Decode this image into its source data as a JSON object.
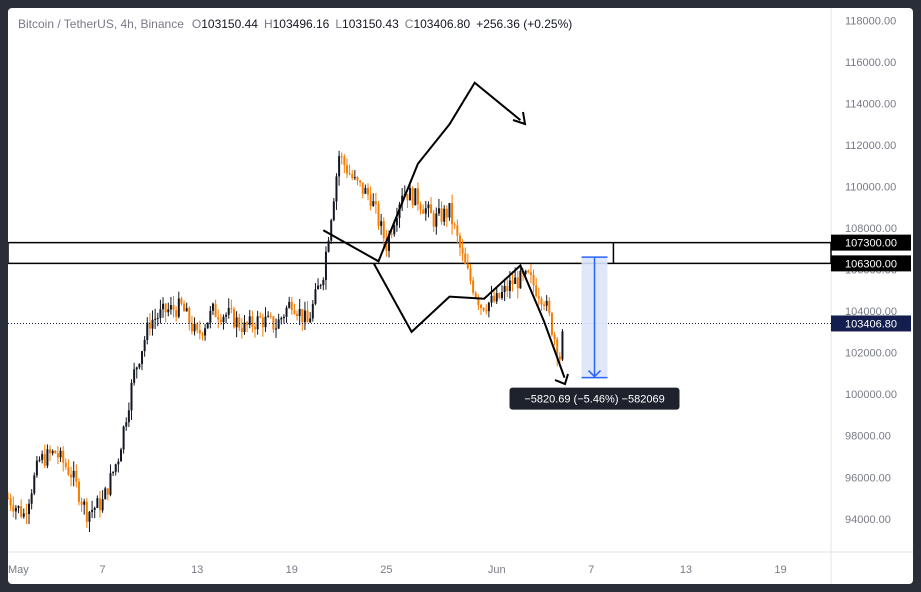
{
  "legend": {
    "symbol": "Bitcoin / TetherUS, 4h, Binance",
    "o_label": "O",
    "o": "103150.44",
    "h_label": "H",
    "h": "103496.16",
    "l_label": "L",
    "l": "103150.43",
    "c_label": "C",
    "c": "103406.80",
    "change": "+256.36 (+0.25%)"
  },
  "colors": {
    "up": "#131722",
    "down": "#f57c00",
    "zone": "#000000",
    "measure": "#2962ff",
    "measure_fill": "#dbe6fb",
    "price_tag": "#131e4f"
  },
  "chart_data": {
    "type": "candlestick",
    "ylim": [
      92400,
      118600
    ],
    "y_ticks": [
      "118000.00",
      "116000.00",
      "114000.00",
      "112000.00",
      "110000.00",
      "108000.00",
      "106000.00",
      "104000.00",
      "102000.00",
      "100000.00",
      "98000.00",
      "96000.00",
      "94000.00"
    ],
    "y_tick_values": [
      118000,
      116000,
      114000,
      112000,
      110000,
      108000,
      106000,
      104000,
      102000,
      100000,
      98000,
      96000,
      94000
    ],
    "x_ticks": [
      "May",
      "7",
      "13",
      "19",
      "25",
      "Jun",
      "7",
      "13",
      "19"
    ],
    "x_tick_days": [
      1,
      7,
      13,
      19,
      25,
      32,
      38,
      44,
      50
    ],
    "xlim_days": [
      1,
      53.2
    ],
    "close_series": [
      {
        "day": 1,
        "price": 95000
      },
      {
        "day": 2,
        "price": 94200
      },
      {
        "day": 3,
        "price": 96800
      },
      {
        "day": 4,
        "price": 97200
      },
      {
        "day": 5,
        "price": 96200
      },
      {
        "day": 6,
        "price": 94300
      },
      {
        "day": 7,
        "price": 94800
      },
      {
        "day": 8,
        "price": 97000
      },
      {
        "day": 9,
        "price": 101000
      },
      {
        "day": 10,
        "price": 103500
      },
      {
        "day": 11,
        "price": 104000
      },
      {
        "day": 12,
        "price": 104200
      },
      {
        "day": 13,
        "price": 102800
      },
      {
        "day": 14,
        "price": 104000
      },
      {
        "day": 15,
        "price": 103800
      },
      {
        "day": 16,
        "price": 103200
      },
      {
        "day": 17,
        "price": 103600
      },
      {
        "day": 18,
        "price": 103300
      },
      {
        "day": 19,
        "price": 104500
      },
      {
        "day": 20,
        "price": 103400
      },
      {
        "day": 21,
        "price": 105900
      },
      {
        "day": 22,
        "price": 111500
      },
      {
        "day": 23,
        "price": 110200
      },
      {
        "day": 24,
        "price": 109500
      },
      {
        "day": 25,
        "price": 107200
      },
      {
        "day": 26,
        "price": 109800
      },
      {
        "day": 27,
        "price": 109400
      },
      {
        "day": 28,
        "price": 108400
      },
      {
        "day": 29,
        "price": 108800
      },
      {
        "day": 30,
        "price": 106100
      },
      {
        "day": 31,
        "price": 104300
      },
      {
        "day": 32,
        "price": 104500
      },
      {
        "day": 33,
        "price": 105400
      },
      {
        "day": 34,
        "price": 105600
      },
      {
        "day": 35,
        "price": 104600
      },
      {
        "day": 36,
        "price": 101800
      },
      {
        "day": 36.3,
        "price": 103406.8
      }
    ],
    "zones": [
      {
        "label": "107300.00",
        "top": 107300,
        "bottom": 106300
      },
      {
        "label": "106300.00",
        "top": 106300,
        "bottom": 106300
      }
    ],
    "current_price_label": "103406.80",
    "current_price": 103406.8,
    "measure": {
      "from_price": 106600,
      "to_price": 100800,
      "day": 38.2,
      "label": "−5820.69 (−5.46%) −582069"
    },
    "drawn_paths": [
      [
        [
          21,
          107900
        ],
        [
          24.5,
          106400
        ],
        [
          27,
          111100
        ],
        [
          29,
          113000
        ],
        [
          30.6,
          115000
        ],
        [
          33.5,
          113200
        ]
      ],
      [
        [
          24.2,
          106300
        ],
        [
          26.6,
          103000
        ],
        [
          29,
          104700
        ],
        [
          31.2,
          104600
        ],
        [
          33.5,
          106200
        ],
        [
          35,
          103500
        ],
        [
          36.3,
          100800
        ]
      ]
    ]
  }
}
